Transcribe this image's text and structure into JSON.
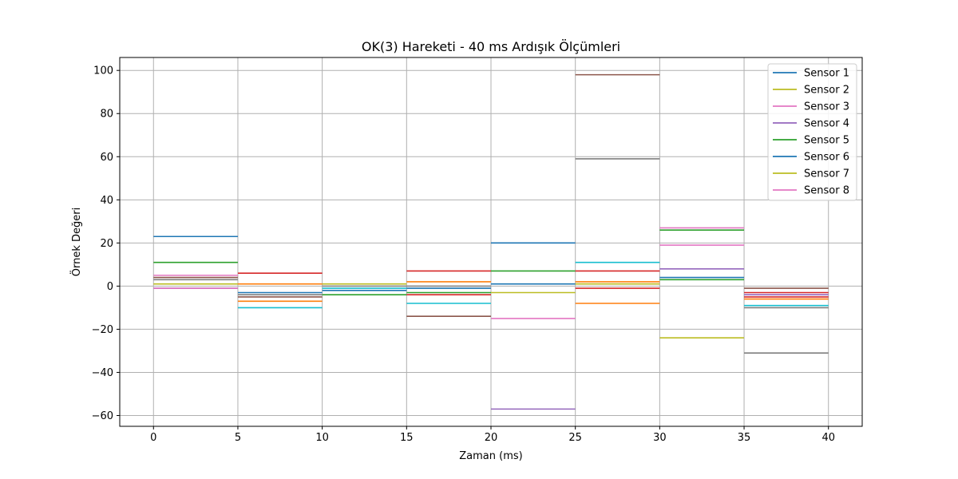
{
  "chart_data": {
    "type": "line",
    "title": "OK(3) Hareketi - 40 ms Ardışık Ölçümleri",
    "xlabel": "Zaman (ms)",
    "ylabel": "Örnek Değeri",
    "xlim": [
      -2,
      42
    ],
    "ylim": [
      -65,
      106
    ],
    "xticks": [
      0,
      5,
      10,
      15,
      20,
      25,
      30,
      35,
      40
    ],
    "yticks": [
      -60,
      -40,
      -20,
      0,
      20,
      40,
      60,
      80,
      100
    ],
    "ytick_labels": [
      "−60",
      "−40",
      "−20",
      "0",
      "20",
      "40",
      "60",
      "80",
      "100"
    ],
    "grid": true,
    "legend_position": "top-right",
    "legend_entries": [
      {
        "name": "Sensor 1",
        "color": "#1f77b4"
      },
      {
        "name": "Sensor 2",
        "color": "#bcbd22"
      },
      {
        "name": "Sensor 3",
        "color": "#e377c2"
      },
      {
        "name": "Sensor 4",
        "color": "#9467bd"
      },
      {
        "name": "Sensor 5",
        "color": "#2ca02c"
      },
      {
        "name": "Sensor 6",
        "color": "#1f77b4"
      },
      {
        "name": "Sensor 7",
        "color": "#bcbd22"
      },
      {
        "name": "Sensor 8",
        "color": "#e377c2"
      }
    ],
    "segments": [
      {
        "x0": 0,
        "x1": 5,
        "values": [
          {
            "color": "#1f77b4",
            "y": 23
          },
          {
            "color": "#2ca02c",
            "y": 11
          },
          {
            "color": "#e377c2",
            "y": 5
          },
          {
            "color": "#8c564b",
            "y": 4
          },
          {
            "color": "#7f7f7f",
            "y": 3
          },
          {
            "color": "#bcbd22",
            "y": 1
          },
          {
            "color": "#9467bd",
            "y": -1
          },
          {
            "color": "#e377c2",
            "y": -1
          }
        ]
      },
      {
        "x0": 5,
        "x1": 10,
        "values": [
          {
            "color": "#d62728",
            "y": 6
          },
          {
            "color": "#ff7f0e",
            "y": 1
          },
          {
            "color": "#1f77b4",
            "y": -3
          },
          {
            "color": "#7f7f7f",
            "y": -4
          },
          {
            "color": "#8c564b",
            "y": -5
          },
          {
            "color": "#ff7f0e",
            "y": -7
          },
          {
            "color": "#17becf",
            "y": -10
          }
        ]
      },
      {
        "x0": 10,
        "x1": 15,
        "values": [
          {
            "color": "#bcbd22",
            "y": 1
          },
          {
            "color": "#7f7f7f",
            "y": 0
          },
          {
            "color": "#17becf",
            "y": -1
          },
          {
            "color": "#1f77b4",
            "y": -2
          },
          {
            "color": "#2ca02c",
            "y": -4
          }
        ]
      },
      {
        "x0": 15,
        "x1": 20,
        "values": [
          {
            "color": "#d62728",
            "y": 7
          },
          {
            "color": "#ff7f0e",
            "y": 2
          },
          {
            "color": "#7f7f7f",
            "y": 0
          },
          {
            "color": "#1f77b4",
            "y": -1
          },
          {
            "color": "#2ca02c",
            "y": -3
          },
          {
            "color": "#d62728",
            "y": -4
          },
          {
            "color": "#17becf",
            "y": -8
          },
          {
            "color": "#8c564b",
            "y": -14
          }
        ]
      },
      {
        "x0": 20,
        "x1": 25,
        "values": [
          {
            "color": "#1f77b4",
            "y": 20
          },
          {
            "color": "#2ca02c",
            "y": 7
          },
          {
            "color": "#1f77b4",
            "y": 1
          },
          {
            "color": "#bcbd22",
            "y": -3
          },
          {
            "color": "#e377c2",
            "y": -15
          },
          {
            "color": "#9467bd",
            "y": -57
          }
        ]
      },
      {
        "x0": 25,
        "x1": 30,
        "values": [
          {
            "color": "#8c564b",
            "y": 98
          },
          {
            "color": "#7f7f7f",
            "y": 59
          },
          {
            "color": "#17becf",
            "y": 11
          },
          {
            "color": "#d62728",
            "y": 7
          },
          {
            "color": "#ff7f0e",
            "y": 2
          },
          {
            "color": "#bcbd22",
            "y": 1
          },
          {
            "color": "#d62728",
            "y": -1
          },
          {
            "color": "#ff7f0e",
            "y": -8
          }
        ]
      },
      {
        "x0": 30,
        "x1": 35,
        "values": [
          {
            "color": "#e377c2",
            "y": 27
          },
          {
            "color": "#2ca02c",
            "y": 26
          },
          {
            "color": "#e377c2",
            "y": 19
          },
          {
            "color": "#9467bd",
            "y": 8
          },
          {
            "color": "#1f77b4",
            "y": 4
          },
          {
            "color": "#2ca02c",
            "y": 3
          },
          {
            "color": "#bcbd22",
            "y": -24
          }
        ]
      },
      {
        "x0": 35,
        "x1": 40,
        "values": [
          {
            "color": "#8c564b",
            "y": -1
          },
          {
            "color": "#d62728",
            "y": -3
          },
          {
            "color": "#9467bd",
            "y": -4
          },
          {
            "color": "#d62728",
            "y": -5
          },
          {
            "color": "#ff7f0e",
            "y": -6
          },
          {
            "color": "#17becf",
            "y": -9
          },
          {
            "color": "#7f7f7f",
            "y": -10
          },
          {
            "color": "#7f7f7f",
            "y": -31
          }
        ]
      }
    ]
  }
}
